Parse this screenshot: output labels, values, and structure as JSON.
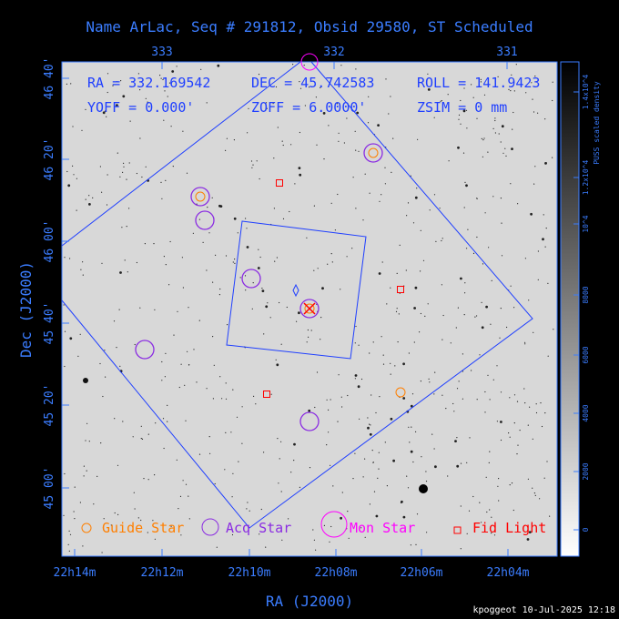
{
  "chart_data": {
    "type": "scatter",
    "title": "Name ArLac, Seq # 291812, Obsid 29580, ST Scheduled",
    "xlabel": "RA (J2000)",
    "ylabel": "Dec (J2000)",
    "x_ticks_bottom": [
      "22h14m",
      "22h12m",
      "22h10m",
      "22h08m",
      "22h06m",
      "22h04m"
    ],
    "x_ticks_top": [
      "333",
      "332",
      "331"
    ],
    "y_ticks_left": [
      "46 40'",
      "46 20'",
      "46 00'",
      "45 40'",
      "45 20'",
      "45 00'"
    ],
    "colorbar": {
      "label": "PUSS scaled density",
      "ticks": [
        "0",
        "2000",
        "4000",
        "6000",
        "8000",
        "10^4",
        "1.2x10^4",
        "1.4x10^4"
      ],
      "range": [
        0,
        14500
      ]
    },
    "info": {
      "ra": "RA = 332.169542",
      "dec": "DEC = 45.742583",
      "roll": "ROLL = 141.9423",
      "yoff": "YOFF =   0.000'",
      "zoff": "ZOFF =  6.0000'",
      "zsim": "ZSIM = 0 mm"
    },
    "legend": {
      "guide": "Guide Star",
      "acq": "Acq Star",
      "mon": "Mon Star",
      "fid": "Fid Light"
    },
    "stamp": "kpoggeot 10-Jul-2025 12:18",
    "colors": {
      "axis": "#3b7dff",
      "guide": "#ff7f00",
      "acq": "#8a2be2",
      "mon": "#ff00ff",
      "fid": "#ff0000",
      "fov": "#1f3fff",
      "target": "#ff00ff"
    }
  }
}
